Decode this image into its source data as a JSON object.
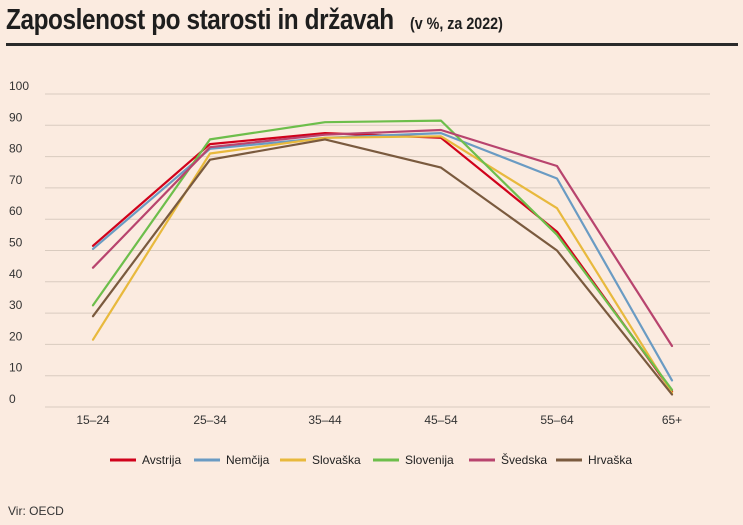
{
  "title": "Zaposlenost po starosti in državah",
  "subtitle": "(v %, za 2022)",
  "source": "Vir: OECD",
  "chart_data": {
    "type": "line",
    "title": "Zaposlenost po starosti in državah",
    "subtitle": "(v %, za 2022)",
    "xlabel": "",
    "ylabel": "",
    "categories": [
      "15–24",
      "25–34",
      "35–44",
      "45–54",
      "55–64",
      "65+"
    ],
    "ylim": [
      0,
      100
    ],
    "yticks": [
      0,
      10,
      20,
      30,
      40,
      50,
      60,
      70,
      80,
      90,
      100
    ],
    "grid": true,
    "legend_position": "bottom",
    "series": [
      {
        "name": "Avstrija",
        "color": "#d0021b",
        "values": [
          51.5,
          84,
          87.5,
          86,
          56,
          5
        ]
      },
      {
        "name": "Nemčija",
        "color": "#6a9bc3",
        "values": [
          50.5,
          82.5,
          86,
          87.5,
          73,
          8.5
        ]
      },
      {
        "name": "Slovaška",
        "color": "#e8b93d",
        "values": [
          21.5,
          81,
          86,
          86.5,
          63.5,
          4.5
        ]
      },
      {
        "name": "Slovenija",
        "color": "#6dbe4b",
        "values": [
          32.5,
          85.5,
          91,
          91.5,
          55,
          5.5
        ]
      },
      {
        "name": "Švedska",
        "color": "#b8446e",
        "values": [
          44.5,
          83,
          87,
          88.5,
          77,
          19.5
        ]
      },
      {
        "name": "Hrvaška",
        "color": "#7a5a3e",
        "values": [
          29,
          79,
          85.5,
          76.5,
          50,
          4
        ]
      }
    ]
  }
}
